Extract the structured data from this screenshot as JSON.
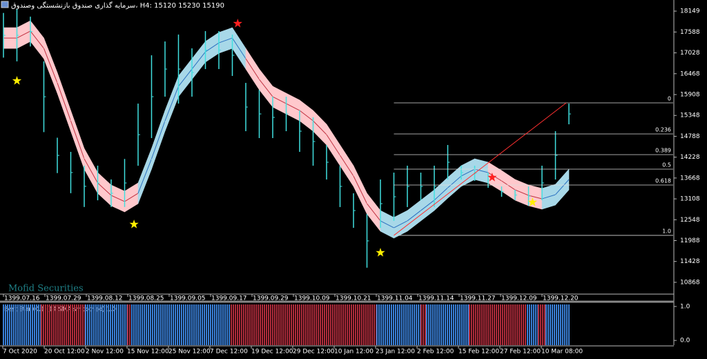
{
  "header": "سرمایه گذاری صندوق بازنشستگی وصندوق، H4:  15120 15230 15190",
  "watermark": "Mofid Securities",
  "chart_data": [
    {
      "type": "ohlc",
      "ylim": [
        10570,
        18410
      ],
      "yticks": [
        18149,
        17588,
        17028,
        16468,
        15908,
        15348,
        14788,
        14228,
        13668,
        13108,
        12548,
        11988,
        11428,
        10868
      ],
      "xlim": [
        0,
        42
      ],
      "x_labels": [
        "1399.07.16",
        "1399.07.29",
        "1399.08.12",
        "1399.08.25",
        "1399.09.05",
        "1399.09.17",
        "1399.09.29",
        "1399.10.09",
        "1399.10.21",
        "1399.11.04",
        "1399.11.14",
        "1399.11.27",
        "1399.12.09",
        "1399.12.20"
      ],
      "color": "#40e0e0",
      "high": [
        18100,
        18200,
        18000,
        16800,
        14750,
        14370,
        14000,
        14000,
        13630,
        14180,
        15666,
        16963,
        17334,
        17519,
        17149,
        17612,
        17612,
        17519,
        16222,
        16037,
        15852,
        15852,
        15481,
        15296,
        14555,
        13999,
        13258,
        12700,
        13628,
        13813,
        13999,
        13813,
        13999,
        14555,
        13999,
        13999,
        13814,
        13443,
        13351,
        13443,
        13999,
        14925,
        15666
      ],
      "low": [
        16900,
        16800,
        17200,
        14900,
        13800,
        13260,
        12890,
        13070,
        12890,
        12890,
        13997,
        14740,
        15852,
        15666,
        15852,
        16593,
        16593,
        16408,
        14925,
        14740,
        14740,
        14925,
        14370,
        13999,
        13628,
        12888,
        12331,
        11260,
        12331,
        12517,
        12888,
        13073,
        12888,
        13628,
        13628,
        13591,
        13406,
        13165,
        13073,
        12925,
        13073,
        13628,
        15110
      ],
      "band": {
        "upper": [
          17706,
          17706,
          17892,
          17429,
          16502,
          15483,
          14464,
          13816,
          13482,
          13316,
          13538,
          14464,
          15483,
          16410,
          16873,
          17336,
          17577,
          17706,
          17151,
          16595,
          16132,
          15946,
          15761,
          15483,
          15113,
          14557,
          14001,
          13260,
          12797,
          12612,
          12797,
          13075,
          13353,
          13686,
          14001,
          14186,
          14094,
          13871,
          13631,
          13482,
          13390,
          13501,
          13908
        ],
        "lower": [
          17146,
          17146,
          17332,
          16869,
          15942,
          14923,
          13904,
          13256,
          12922,
          12756,
          12978,
          13904,
          14923,
          15850,
          16313,
          16776,
          17017,
          17146,
          16591,
          16035,
          15572,
          15386,
          15201,
          14923,
          14553,
          13997,
          13441,
          12700,
          12237,
          12052,
          12237,
          12515,
          12793,
          13126,
          13441,
          13626,
          13534,
          13311,
          13071,
          12922,
          12830,
          12941,
          13348
        ],
        "colors": [
          "#ffc8cc",
          "#ffc8cc",
          "#ffc8cc",
          "#ffc8cc",
          "#ffc8cc",
          "#ffc8cc",
          "#ffc8cc",
          "#ffc8cc",
          "#ffc8cc",
          "#ffc8cc",
          "#a8d8e8",
          "#a8d8e8",
          "#a8d8e8",
          "#a8d8e8",
          "#a8d8e8",
          "#a8d8e8",
          "#a8d8e8",
          "#a8d8e8",
          "#ffc8cc",
          "#ffc8cc",
          "#ffc8cc",
          "#ffc8cc",
          "#ffc8cc",
          "#ffc8cc",
          "#ffc8cc",
          "#ffc8cc",
          "#ffc8cc",
          "#ffc8cc",
          "#a8d8e8",
          "#a8d8e8",
          "#a8d8e8",
          "#a8d8e8",
          "#a8d8e8",
          "#a8d8e8",
          "#a8d8e8",
          "#a8d8e8",
          "#ffc8cc",
          "#ffc8cc",
          "#ffc8cc",
          "#ffc8cc",
          "#a8d8e8",
          "#a8d8e8",
          "#a8d8e8"
        ]
      },
      "fib_levels": [
        {
          "label": "0",
          "price": 15685
        },
        {
          "label": "0.236",
          "price": 14851
        },
        {
          "label": "0.389",
          "price": 14295
        },
        {
          "label": "0.5",
          "price": 13906
        },
        {
          "label": "0.618",
          "price": 13480
        },
        {
          "label": "1.0",
          "price": 12128
        }
      ],
      "fib_start": 29,
      "trendline": {
        "x": [
          29,
          41.8
        ],
        "y": [
          12128,
          15685
        ],
        "color": "#ff3030"
      },
      "stars": [
        {
          "x": 1.0,
          "y": 16278,
          "color": "#ffee00"
        },
        {
          "x": 9.7,
          "y": 12424,
          "color": "#ffee00"
        },
        {
          "x": 28.0,
          "y": 11664,
          "color": "#ffee00"
        },
        {
          "x": 39.3,
          "y": 13017,
          "color": "#ffee00"
        },
        {
          "x": 17.4,
          "y": 17816,
          "color": "#ff2020"
        },
        {
          "x": 36.3,
          "y": 13684,
          "color": "#ff2020"
        }
      ]
    },
    {
      "type": "histogram",
      "title": "Best Star  (0.1)(14 SMA smoothed) 1.0",
      "ylim": [
        -0.14,
        1.08
      ],
      "yticks": [
        {
          "value": 1,
          "label": "1.0"
        },
        {
          "value": 0,
          "label": "0.0"
        }
      ],
      "xlim": [
        0,
        42
      ],
      "x_labels": [
        "7 Oct 2020",
        "20 Oct 12:00",
        "2 Nov 12:00",
        "15 Nov 12:00",
        "25 Nov 12:00",
        "7 Dec 12:00",
        "19 Dec 12:00",
        "29 Dec 12:00",
        "10 Jan 12:00",
        "23 Jan 12:00",
        "2 Feb 12:00",
        "15 Feb 12:00",
        "27 Feb 12:00",
        "10 Mar 08:00"
      ],
      "runs": [
        {
          "start": 0,
          "end": 2.8,
          "value": 1,
          "color": "#3a80d8"
        },
        {
          "start": 2.8,
          "end": 6.1,
          "value": 1,
          "color": "#b02c3c"
        },
        {
          "start": 6.1,
          "end": 9.2,
          "value": 1,
          "color": "#3a80d8"
        },
        {
          "start": 9.2,
          "end": 9.5,
          "value": 1,
          "color": "#b02c3c"
        },
        {
          "start": 9.5,
          "end": 16.9,
          "value": 1,
          "color": "#3a80d8"
        },
        {
          "start": 16.9,
          "end": 27.7,
          "value": 1,
          "color": "#b02c3c"
        },
        {
          "start": 27.7,
          "end": 31.0,
          "value": 1,
          "color": "#3a80d8"
        },
        {
          "start": 31.0,
          "end": 31.4,
          "value": 1,
          "color": "#b02c3c"
        },
        {
          "start": 31.4,
          "end": 34.6,
          "value": 1,
          "color": "#3a80d8"
        },
        {
          "start": 34.6,
          "end": 38.9,
          "value": 1,
          "color": "#b02c3c"
        },
        {
          "start": 38.9,
          "end": 39.7,
          "value": 1,
          "color": "#3a80d8"
        },
        {
          "start": 39.7,
          "end": 40.3,
          "value": 1,
          "color": "#b02c3c"
        },
        {
          "start": 40.3,
          "end": 42.1,
          "value": 1,
          "color": "#3a80d8"
        }
      ]
    }
  ]
}
